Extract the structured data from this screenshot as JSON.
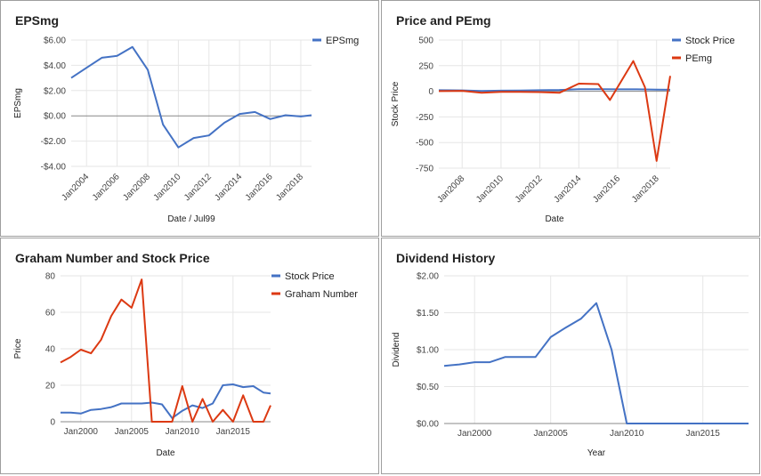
{
  "colors": {
    "blue": "#4472c4",
    "red": "#dc3912"
  },
  "chart_data": [
    {
      "type": "line",
      "title": "EPSmg",
      "xlabel": "Date / Jul99",
      "ylabel": "EPSmg",
      "x_axis": "date",
      "ylim": [
        -4,
        6
      ],
      "yticks": [
        -4,
        -2,
        0,
        2,
        4,
        6
      ],
      "ytick_labels": [
        "-$4.00",
        "-$2.00",
        "$0.00",
        "$2.00",
        "$4.00",
        "$6.00"
      ],
      "xlim": [
        2003.0,
        2018.7
      ],
      "xticks": [
        2004,
        2006,
        2008,
        2010,
        2012,
        2014,
        2016,
        2018
      ],
      "xtick_labels": [
        "Jan2004",
        "Jan2006",
        "Jan2008",
        "Jan2010",
        "Jan2012",
        "Jan2014",
        "Jan2016",
        "Jan2018"
      ],
      "legend": "right",
      "series": [
        {
          "name": "EPSmg",
          "color": "#4472c4",
          "x": [
            2003.0,
            2004.0,
            2005.0,
            2006.0,
            2007.0,
            2008.0,
            2009.0,
            2010.0,
            2011.0,
            2012.0,
            2013.0,
            2014.0,
            2015.0,
            2016.0,
            2017.0,
            2018.0,
            2018.7
          ],
          "y": [
            3.0,
            3.8,
            4.6,
            4.75,
            5.45,
            3.65,
            -0.7,
            -2.5,
            -1.75,
            -1.55,
            -0.55,
            0.15,
            0.3,
            -0.25,
            0.05,
            -0.05,
            0.05
          ]
        }
      ]
    },
    {
      "type": "line",
      "title": "Price and PEmg",
      "xlabel": "Date",
      "ylabel": "Stock Price",
      "x_axis": "date",
      "ylim": [
        -750,
        500
      ],
      "yticks": [
        -750,
        -500,
        -250,
        0,
        250,
        500
      ],
      "ytick_labels": [
        "-750",
        "-500",
        "-250",
        "0",
        "250",
        "500"
      ],
      "xlim": [
        2006.8,
        2018.7
      ],
      "xticks": [
        2008,
        2010,
        2012,
        2014,
        2016,
        2018
      ],
      "xtick_labels": [
        "Jan2008",
        "Jan2010",
        "Jan2012",
        "Jan2014",
        "Jan2016",
        "Jan2018"
      ],
      "legend": "right",
      "series": [
        {
          "name": "Stock Price",
          "color": "#4472c4",
          "x": [
            2006.8,
            2008.0,
            2009.0,
            2010.0,
            2011.0,
            2012.0,
            2013.0,
            2014.0,
            2015.0,
            2016.0,
            2017.0,
            2018.0,
            2018.7
          ],
          "y": [
            10,
            9,
            3,
            6,
            8,
            10,
            13,
            20,
            20,
            19,
            19,
            16,
            15
          ]
        },
        {
          "name": "PEmg",
          "color": "#dc3912",
          "x": [
            2006.8,
            2008.0,
            2009.0,
            2010.0,
            2011.0,
            2012.0,
            2013.0,
            2014.0,
            2015.0,
            2015.6,
            2016.8,
            2017.4,
            2018.0,
            2018.7
          ],
          "y": [
            2,
            4,
            -15,
            -5,
            -5,
            -8,
            -15,
            75,
            70,
            -85,
            295,
            40,
            -680,
            150
          ]
        }
      ]
    },
    {
      "type": "line",
      "title": "Graham Number and Stock Price",
      "xlabel": "Date",
      "ylabel": "Price",
      "x_axis": "date",
      "ylim": [
        0,
        80
      ],
      "yticks": [
        0,
        20,
        40,
        60,
        80
      ],
      "ytick_labels": [
        "0",
        "20",
        "40",
        "60",
        "80"
      ],
      "xlim": [
        1998.0,
        2018.7
      ],
      "xticks": [
        2000,
        2005,
        2010,
        2015
      ],
      "xtick_labels": [
        "Jan2000",
        "Jan2005",
        "Jan2010",
        "Jan2015"
      ],
      "legend": "right",
      "series": [
        {
          "name": "Stock Price",
          "color": "#4472c4",
          "x": [
            1998.0,
            1999.0,
            2000.0,
            2001.0,
            2002.0,
            2003.0,
            2004.0,
            2005.0,
            2006.0,
            2007.0,
            2008.0,
            2009.0,
            2010.0,
            2011.0,
            2012.0,
            2013.0,
            2014.0,
            2015.0,
            2016.0,
            2017.0,
            2018.0,
            2018.7
          ],
          "y": [
            5,
            5,
            4.5,
            6.5,
            7,
            8,
            10,
            10,
            10,
            10.5,
            9.5,
            2,
            6,
            9,
            7.5,
            10,
            20,
            20.5,
            19,
            19.5,
            16,
            15.5
          ]
        },
        {
          "name": "Graham Number",
          "color": "#dc3912",
          "x": [
            1998.0,
            1999.0,
            2000.0,
            2001.0,
            2002.0,
            2003.0,
            2004.0,
            2005.0,
            2006.0,
            2007.0,
            2008.0,
            2009.0,
            2010.0,
            2011.0,
            2012.0,
            2013.0,
            2014.0,
            2015.0,
            2016.0,
            2017.0,
            2018.0,
            2018.7
          ],
          "y": [
            32.5,
            35.5,
            39.5,
            37.5,
            45,
            58,
            67,
            62.5,
            78,
            0,
            0,
            0,
            19.5,
            0,
            12.5,
            0,
            6.5,
            0,
            14.5,
            0,
            0,
            9
          ]
        }
      ]
    },
    {
      "type": "line",
      "title": "Dividend History",
      "xlabel": "Year",
      "ylabel": "Dividend",
      "x_axis": "date",
      "ylim": [
        0,
        2
      ],
      "yticks": [
        0,
        0.5,
        1.0,
        1.5,
        2.0
      ],
      "ytick_labels": [
        "$0.00",
        "$0.50",
        "$1.00",
        "$1.50",
        "$2.00"
      ],
      "xlim": [
        1998.0,
        2018.0
      ],
      "xticks": [
        2000,
        2005,
        2010,
        2015
      ],
      "xtick_labels": [
        "Jan2000",
        "Jan2005",
        "Jan2010",
        "Jan2015"
      ],
      "legend": "none",
      "series": [
        {
          "name": "",
          "color": "#4472c4",
          "x": [
            1998.0,
            1999.0,
            2000.0,
            2001.0,
            2002.0,
            2003.0,
            2004.0,
            2005.0,
            2006.0,
            2007.0,
            2008.0,
            2009.0,
            2010.0,
            2011.0,
            2012.0,
            2013.0,
            2014.0,
            2015.0,
            2016.0,
            2017.0,
            2018.0
          ],
          "y": [
            0.78,
            0.8,
            0.83,
            0.83,
            0.9,
            0.9,
            0.9,
            1.17,
            1.3,
            1.42,
            1.63,
            1.0,
            0.0,
            0.0,
            0.0,
            0.0,
            0.0,
            0.0,
            0.0,
            0.0,
            0.0
          ]
        }
      ]
    }
  ]
}
